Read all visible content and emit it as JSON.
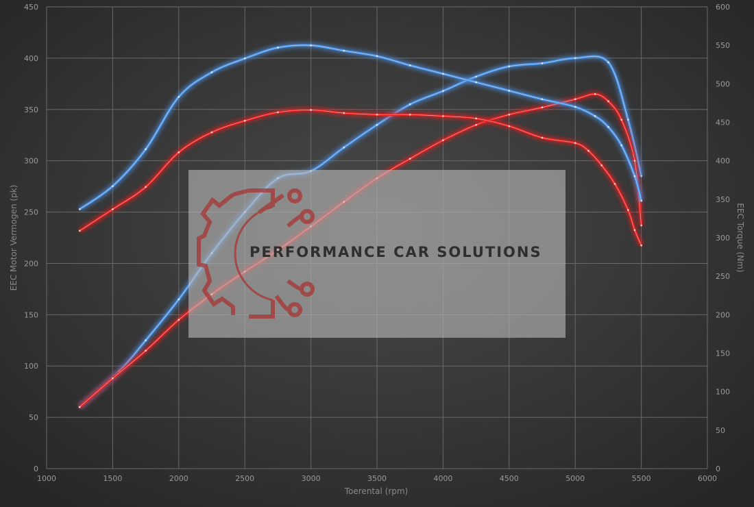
{
  "chart_data": {
    "type": "line",
    "title": "",
    "xlabel": "Toerental (rpm)",
    "ylabel": "EEC Motor Vermogen (pk)",
    "y2label": "EEC Torque (Nm)",
    "xlim": [
      1000,
      6000
    ],
    "ylim": [
      0,
      450
    ],
    "y2lim": [
      0,
      600
    ],
    "xticks": [
      1000,
      1500,
      2000,
      2500,
      3000,
      3500,
      4000,
      4500,
      5000,
      5500,
      6000
    ],
    "yticks": [
      0,
      50,
      100,
      150,
      200,
      250,
      300,
      350,
      400,
      450
    ],
    "y2ticks": [
      0,
      50,
      100,
      150,
      200,
      250,
      300,
      350,
      400,
      450,
      500,
      550,
      600
    ],
    "grid": true,
    "series": [
      {
        "axis": "left",
        "color": "#4a90e2",
        "x": [
          1250,
          1550,
          1750,
          2000,
          2250,
          2500,
          2750,
          3000,
          3250,
          3500,
          3750,
          4000,
          4250,
          4500,
          4750,
          5000,
          5250,
          5400,
          5500
        ],
        "y": [
          60,
          95,
          125,
          165,
          210,
          250,
          283,
          290,
          313,
          335,
          355,
          368,
          382,
          392,
          395,
          400,
          396,
          340,
          285
        ]
      },
      {
        "axis": "left",
        "color": "#e02020",
        "x": [
          1250,
          1500,
          1750,
          2000,
          2250,
          2500,
          2750,
          3000,
          3250,
          3500,
          3750,
          4000,
          4250,
          4500,
          4750,
          5000,
          5150,
          5250,
          5350,
          5450,
          5500
        ],
        "y": [
          60,
          88,
          115,
          145,
          170,
          192,
          213,
          236,
          260,
          283,
          302,
          320,
          335,
          345,
          352,
          360,
          365,
          358,
          340,
          300,
          237
        ]
      },
      {
        "axis": "right",
        "color": "#4a90e2",
        "x": [
          1250,
          1500,
          1750,
          2000,
          2250,
          2500,
          2750,
          3000,
          3250,
          3500,
          3750,
          4000,
          4250,
          4500,
          4750,
          5000,
          5150,
          5250,
          5350,
          5450,
          5500
        ],
        "y": [
          337,
          367,
          415,
          483,
          515,
          533,
          547,
          550,
          543,
          536,
          524,
          513,
          502,
          491,
          480,
          470,
          458,
          444,
          420,
          380,
          348
        ]
      },
      {
        "axis": "right",
        "color": "#e02020",
        "x": [
          1250,
          1500,
          1750,
          2000,
          2250,
          2500,
          2750,
          3000,
          3250,
          3500,
          3750,
          4000,
          4250,
          4500,
          4750,
          5000,
          5100,
          5200,
          5300,
          5400,
          5450,
          5500
        ],
        "y": [
          309,
          337,
          366,
          411,
          437,
          452,
          463,
          466,
          462,
          460,
          460,
          458,
          455,
          445,
          430,
          423,
          413,
          394,
          370,
          336,
          310,
          290
        ]
      }
    ]
  },
  "watermark": {
    "text": "PERFORMANCE CAR SOLUTIONS",
    "logo_icon": "gear-circuit-logo-icon"
  }
}
